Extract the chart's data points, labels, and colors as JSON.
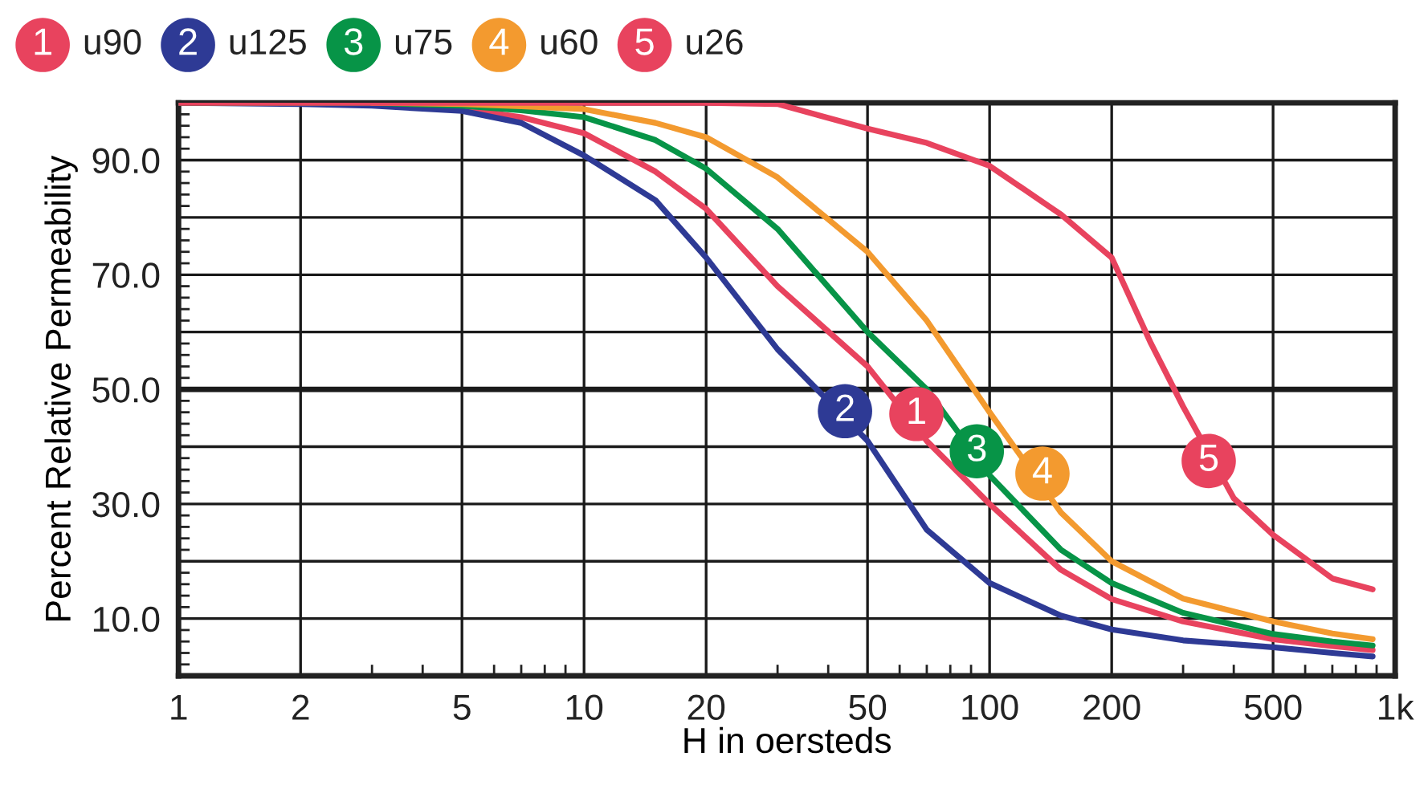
{
  "chart_data": {
    "type": "line",
    "xlabel": "H in oersteds",
    "ylabel": "Percent Relative Permeability",
    "x": [
      1,
      2,
      3,
      5,
      7,
      10,
      15,
      20,
      30,
      50,
      70,
      100,
      150,
      200,
      300,
      500,
      700,
      880
    ],
    "series": [
      {
        "name": "u90",
        "color": "#e8435e",
        "values": [
          100,
          100,
          99.8,
          99,
          97.5,
          94.7,
          88,
          81.5,
          68,
          54,
          41,
          30,
          18.5,
          13.4,
          9.5,
          6.4,
          5.2,
          4.5
        ]
      },
      {
        "name": "u125",
        "color": "#2e3a95",
        "values": [
          100,
          99.8,
          99.5,
          98.6,
          96.5,
          90.8,
          83,
          73,
          57,
          41,
          25.5,
          16.2,
          10.5,
          8.1,
          6.2,
          5,
          4,
          3.4
        ]
      },
      {
        "name": "u75",
        "color": "#079447",
        "values": [
          100,
          100,
          100,
          99.5,
          98.7,
          97.5,
          93.5,
          88.5,
          78,
          60,
          50,
          35,
          22,
          16.2,
          11,
          7.3,
          6,
          5.3
        ]
      },
      {
        "name": "u60",
        "color": "#f39a2f",
        "values": [
          null,
          null,
          100,
          99.8,
          99.4,
          98.9,
          96.5,
          94,
          87,
          74,
          62,
          46,
          28.5,
          20,
          13.5,
          9.5,
          7.4,
          6.4
        ]
      },
      {
        "name": "u26",
        "color": "#e8435e",
        "x": [
          1,
          10,
          20,
          30,
          50,
          70,
          100,
          150,
          200,
          250,
          300,
          400,
          500,
          700,
          880
        ],
        "values": [
          100,
          100,
          100,
          99.8,
          95.5,
          93,
          89,
          80.5,
          73,
          58,
          47,
          31,
          24.6,
          17,
          15.1
        ]
      }
    ],
    "annotations": [
      {
        "text": "1",
        "x": 66,
        "y": 45.7
      },
      {
        "text": "2",
        "x": 44,
        "y": 46.2
      },
      {
        "text": "3",
        "x": 93,
        "y": 39.2
      },
      {
        "text": "4",
        "x": 135,
        "y": 35.3
      },
      {
        "text": "5",
        "x": 347,
        "y": 37.5
      }
    ],
    "ref_lines": [
      {
        "axis": "y",
        "value": 50
      }
    ],
    "log": "x",
    "xlim": [
      1,
      1000
    ],
    "ylim": [
      0,
      100
    ],
    "xticks": [
      1,
      2,
      5,
      10,
      20,
      50,
      100,
      200,
      500,
      {
        "value": 1000,
        "label": "1k"
      }
    ],
    "yticks": [
      {
        "value": 0,
        "label": null
      },
      {
        "value": 10,
        "label": "10.0"
      },
      {
        "value": 20,
        "label": null
      },
      {
        "value": 30,
        "label": "30.0"
      },
      {
        "value": 40,
        "label": null
      },
      {
        "value": 50,
        "label": "50.0"
      },
      {
        "value": 60,
        "label": null
      },
      {
        "value": 70,
        "label": "70.0"
      },
      {
        "value": 80,
        "label": null
      },
      {
        "value": 90,
        "label": "90.0"
      },
      {
        "value": 100,
        "label": null
      }
    ],
    "grid": true,
    "legend": "top",
    "marker": "none",
    "line_style": "solid"
  }
}
